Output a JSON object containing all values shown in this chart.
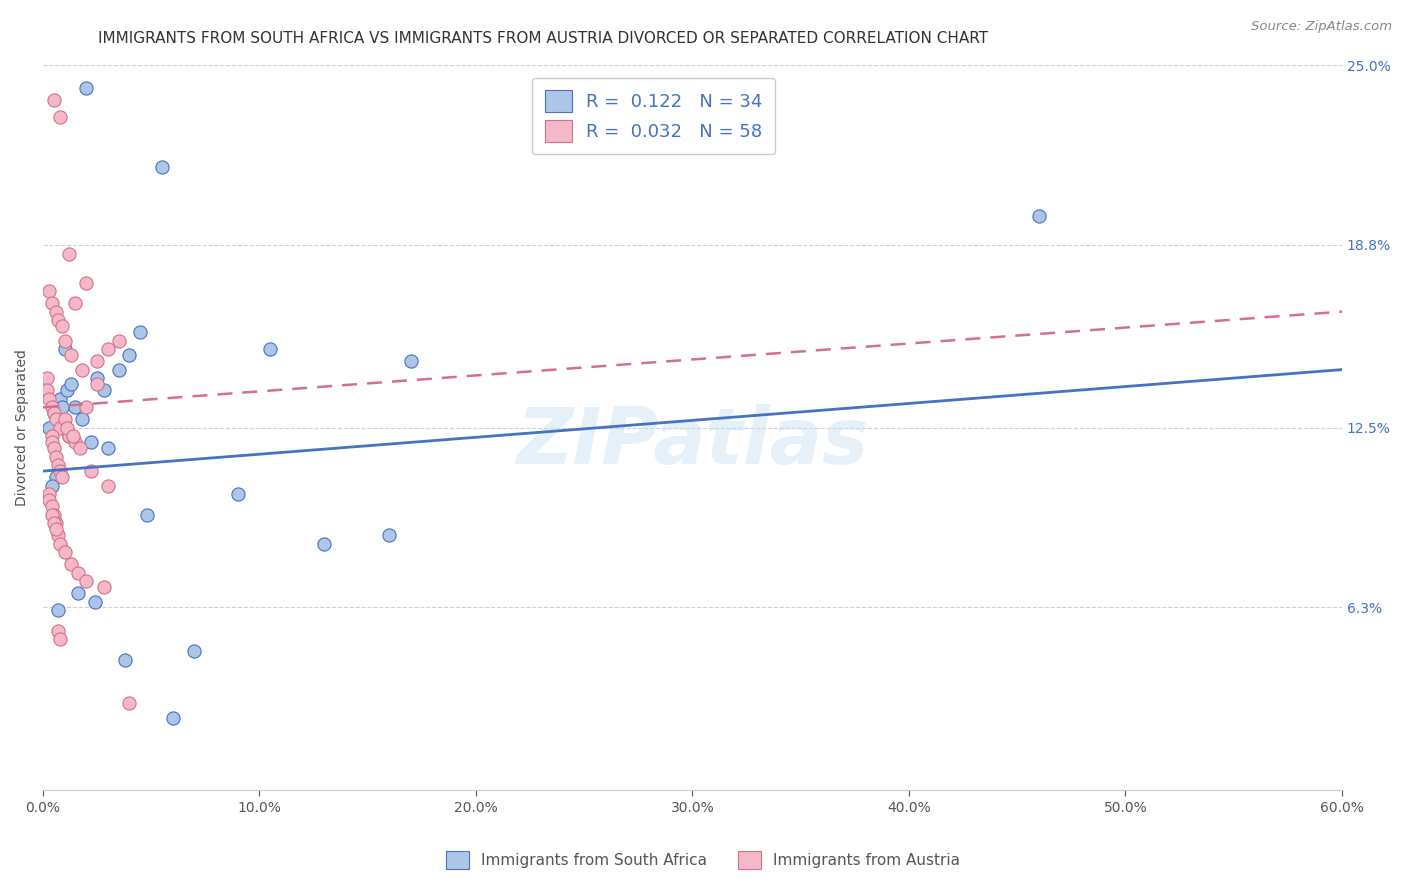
{
  "title": "IMMIGRANTS FROM SOUTH AFRICA VS IMMIGRANTS FROM AUSTRIA DIVORCED OR SEPARATED CORRELATION CHART",
  "source_text": "Source: ZipAtlas.com",
  "xlabel_vals": [
    0.0,
    10.0,
    20.0,
    30.0,
    40.0,
    50.0,
    60.0
  ],
  "ylabel_ticks_right": [
    "6.3%",
    "12.5%",
    "18.8%",
    "25.0%"
  ],
  "ylabel_vals_right": [
    6.3,
    12.5,
    18.8,
    25.0
  ],
  "ylabel_label": "Divorced or Separated",
  "watermark": "ZIPatlas",
  "blue_R": "0.122",
  "blue_N": "34",
  "pink_R": "0.032",
  "pink_N": "58",
  "blue_color": "#adc6e8",
  "pink_color": "#f5b8c8",
  "blue_line_color": "#4472c4",
  "pink_line_color": "#d4708a",
  "legend_label_blue": "Immigrants from South Africa",
  "legend_label_pink": "Immigrants from Austria",
  "xlim": [
    0.0,
    60.0
  ],
  "ylim": [
    0.0,
    25.0
  ],
  "blue_scatter_x": [
    2.0,
    1.0,
    0.5,
    0.8,
    1.5,
    5.5,
    2.5,
    3.5,
    4.0,
    1.8,
    2.8,
    1.2,
    4.5,
    0.3,
    0.6,
    0.4,
    0.9,
    1.1,
    1.3,
    2.2,
    3.0,
    10.5,
    17.0,
    0.7,
    1.6,
    2.4,
    3.8,
    46.0,
    13.0,
    16.0,
    4.8,
    7.0,
    6.0,
    9.0
  ],
  "blue_scatter_y": [
    24.2,
    15.2,
    13.0,
    13.5,
    13.2,
    21.5,
    14.2,
    14.5,
    15.0,
    12.8,
    13.8,
    12.2,
    15.8,
    12.5,
    10.8,
    10.5,
    13.2,
    13.8,
    14.0,
    12.0,
    11.8,
    15.2,
    14.8,
    6.2,
    6.8,
    6.5,
    4.5,
    19.8,
    8.5,
    8.8,
    9.5,
    4.8,
    2.5,
    10.2
  ],
  "pink_scatter_x": [
    0.5,
    0.8,
    1.2,
    2.0,
    1.5,
    0.3,
    0.4,
    0.6,
    0.7,
    0.9,
    1.0,
    1.3,
    1.8,
    2.5,
    3.0,
    0.2,
    0.2,
    0.3,
    0.4,
    0.5,
    0.6,
    0.8,
    1.0,
    1.2,
    1.5,
    2.0,
    2.5,
    3.5,
    0.4,
    0.4,
    0.5,
    0.6,
    0.7,
    0.8,
    0.9,
    1.1,
    1.4,
    1.7,
    2.2,
    3.0,
    0.3,
    0.3,
    0.4,
    0.5,
    0.6,
    0.7,
    0.8,
    1.0,
    1.3,
    1.6,
    2.0,
    2.8,
    0.4,
    0.5,
    0.6,
    0.7,
    0.8,
    4.0
  ],
  "pink_scatter_y": [
    23.8,
    23.2,
    18.5,
    17.5,
    16.8,
    17.2,
    16.8,
    16.5,
    16.2,
    16.0,
    15.5,
    15.0,
    14.5,
    14.8,
    15.2,
    14.2,
    13.8,
    13.5,
    13.2,
    13.0,
    12.8,
    12.5,
    12.8,
    12.2,
    12.0,
    13.2,
    14.0,
    15.5,
    12.2,
    12.0,
    11.8,
    11.5,
    11.2,
    11.0,
    10.8,
    12.5,
    12.2,
    11.8,
    11.0,
    10.5,
    10.2,
    10.0,
    9.8,
    9.5,
    9.2,
    8.8,
    8.5,
    8.2,
    7.8,
    7.5,
    7.2,
    7.0,
    9.5,
    9.2,
    9.0,
    5.5,
    5.2,
    3.0
  ],
  "grid_color": "#d0d0d0",
  "bg_color": "#ffffff",
  "title_fontsize": 11.0,
  "source_fontsize": 9.5,
  "blue_line_start_y": 11.0,
  "blue_line_end_y": 14.5,
  "pink_line_start_y": 13.2,
  "pink_line_end_y": 16.5
}
